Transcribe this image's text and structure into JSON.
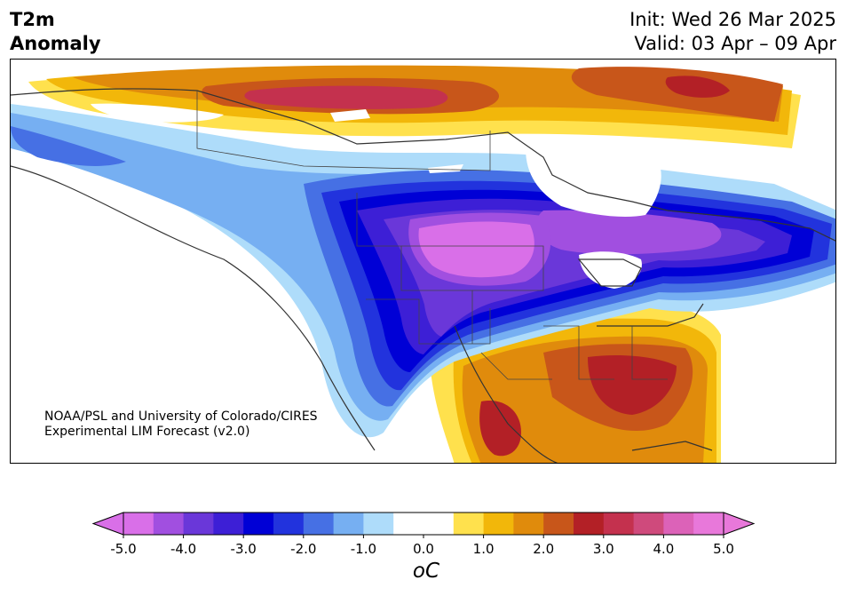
{
  "title": {
    "line1": "T2m",
    "line2": "Anomaly"
  },
  "forecast": {
    "init": "Init: Wed 26 Mar 2025",
    "valid": "Valid: 03 Apr – 09 Apr"
  },
  "credit": {
    "line1": "NOAA/PSL and University of Colorado/CIRES",
    "line2": "Experimental LIM Forecast (v2.0)"
  },
  "colorbar": {
    "unit": "oC",
    "tick_labels": [
      "-5.0",
      "-4.0",
      "-3.0",
      "-2.0",
      "-1.0",
      "0.0",
      "1.0",
      "2.0",
      "3.0",
      "4.0",
      "5.0"
    ],
    "colors": [
      "#d96fe8",
      "#a14fe0",
      "#6a37d9",
      "#3d1fd6",
      "#0000d6",
      "#2233dd",
      "#4670e4",
      "#76aff2",
      "#aedcfa",
      "#ffffff",
      "#ffffff",
      "#ffe14d",
      "#f2b70a",
      "#e08b0c",
      "#c8561a",
      "#b32026",
      "#c4314e",
      "#cf4a7c",
      "#dc62b8",
      "#e878da"
    ],
    "over_color": "#e878da",
    "under_color": "#d96fe8"
  }
}
